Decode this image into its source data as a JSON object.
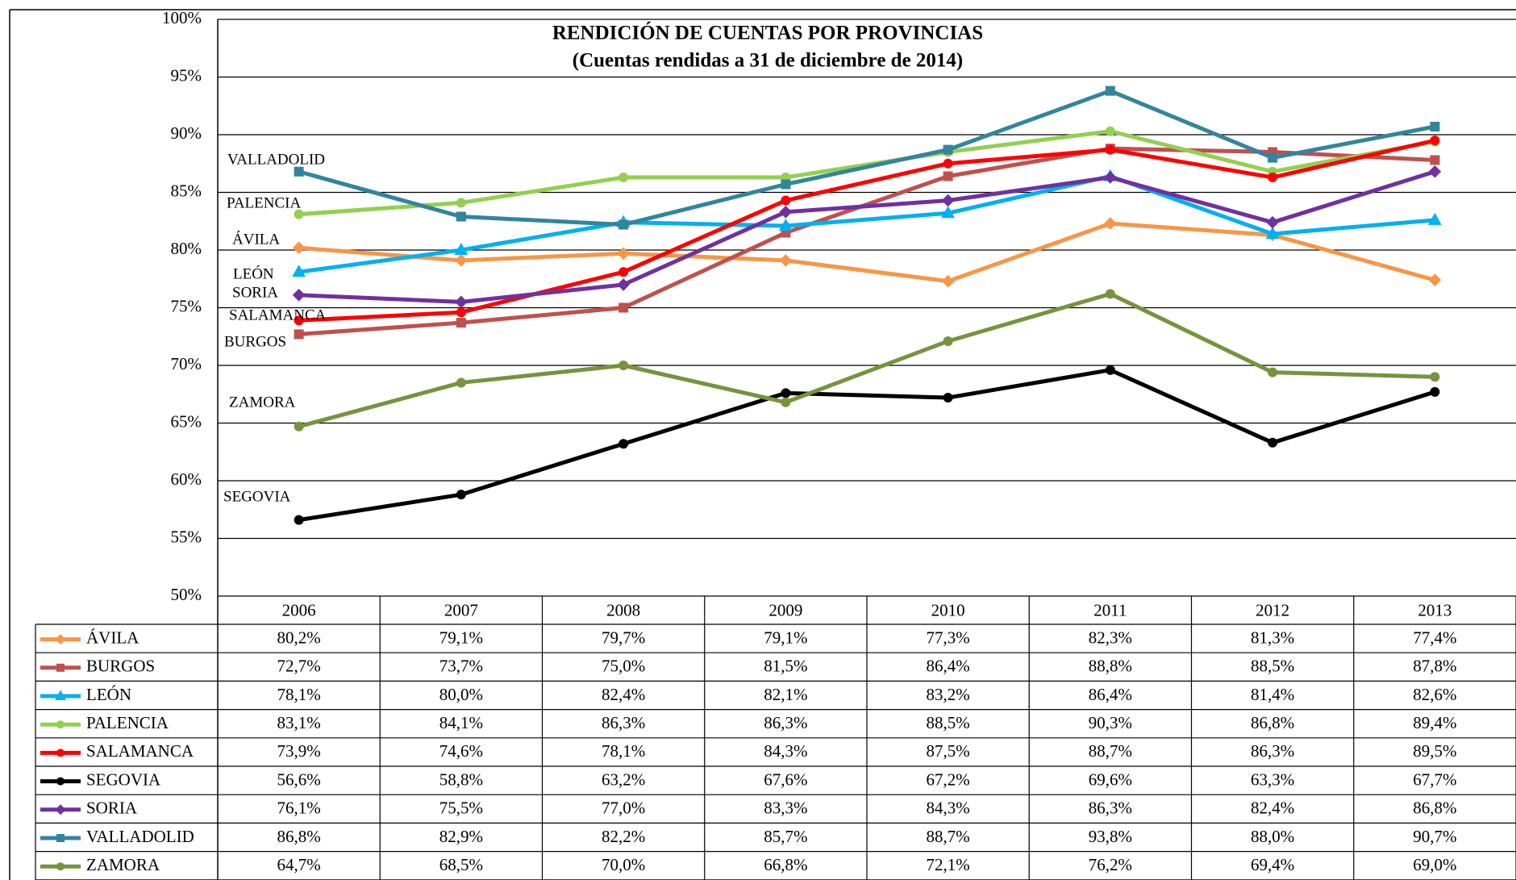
{
  "chart_data": {
    "type": "line",
    "title": "RENDICIÓN DE CUENTAS POR PROVINCIAS",
    "subtitle": "(Cuentas rendidas a 31 de diciembre de 2014)",
    "categories": [
      "2006",
      "2007",
      "2008",
      "2009",
      "2010",
      "2011",
      "2012",
      "2013"
    ],
    "ylim": [
      50,
      100
    ],
    "yticks": [
      {
        "value": 50,
        "label": "50%"
      },
      {
        "value": 55,
        "label": "55%"
      },
      {
        "value": 60,
        "label": "60%"
      },
      {
        "value": 65,
        "label": "65%"
      },
      {
        "value": 70,
        "label": "70%"
      },
      {
        "value": 75,
        "label": "75%"
      },
      {
        "value": 80,
        "label": "80%"
      },
      {
        "value": 85,
        "label": "85%"
      },
      {
        "value": 90,
        "label": "90%"
      },
      {
        "value": 95,
        "label": "95%"
      },
      {
        "value": 100,
        "label": "100%"
      }
    ],
    "grid": true,
    "series": [
      {
        "name": "ÁVILA",
        "color": "#f79646",
        "marker": "diamond",
        "values": [
          80.2,
          79.1,
          79.7,
          79.1,
          77.3,
          82.3,
          81.3,
          77.4
        ],
        "value_labels": [
          "80,2%",
          "79,1%",
          "79,7%",
          "79,1%",
          "77,3%",
          "82,3%",
          "81,3%",
          "77,4%"
        ]
      },
      {
        "name": "BURGOS",
        "color": "#c0504d",
        "marker": "square",
        "values": [
          72.7,
          73.7,
          75.0,
          81.5,
          86.4,
          88.8,
          88.5,
          87.8
        ],
        "value_labels": [
          "72,7%",
          "73,7%",
          "75,0%",
          "81,5%",
          "86,4%",
          "88,8%",
          "88,5%",
          "87,8%"
        ]
      },
      {
        "name": "LEÓN",
        "color": "#00b0f0",
        "marker": "triangle",
        "values": [
          78.1,
          80.0,
          82.4,
          82.1,
          83.2,
          86.4,
          81.4,
          82.6
        ],
        "value_labels": [
          "78,1%",
          "80,0%",
          "82,4%",
          "82,1%",
          "83,2%",
          "86,4%",
          "81,4%",
          "82,6%"
        ]
      },
      {
        "name": "PALENCIA",
        "color": "#92d050",
        "marker": "circle",
        "values": [
          83.1,
          84.1,
          86.3,
          86.3,
          88.5,
          90.3,
          86.8,
          89.4
        ],
        "value_labels": [
          "83,1%",
          "84,1%",
          "86,3%",
          "86,3%",
          "88,5%",
          "90,3%",
          "86,8%",
          "89,4%"
        ]
      },
      {
        "name": "SALAMANCA",
        "color": "#ff0000",
        "marker": "circle",
        "values": [
          73.9,
          74.6,
          78.1,
          84.3,
          87.5,
          88.7,
          86.3,
          89.5
        ],
        "value_labels": [
          "73,9%",
          "74,6%",
          "78,1%",
          "84,3%",
          "87,5%",
          "88,7%",
          "86,3%",
          "89,5%"
        ]
      },
      {
        "name": "SEGOVIA",
        "color": "#000000",
        "marker": "circle",
        "values": [
          56.6,
          58.8,
          63.2,
          67.6,
          67.2,
          69.6,
          63.3,
          67.7
        ],
        "value_labels": [
          "56,6%",
          "58,8%",
          "63,2%",
          "67,6%",
          "67,2%",
          "69,6%",
          "63,3%",
          "67,7%"
        ]
      },
      {
        "name": "SORIA",
        "color": "#7030a0",
        "marker": "diamond",
        "values": [
          76.1,
          75.5,
          77.0,
          83.3,
          84.3,
          86.3,
          82.4,
          86.8
        ],
        "value_labels": [
          "76,1%",
          "75,5%",
          "77,0%",
          "83,3%",
          "84,3%",
          "86,3%",
          "82,4%",
          "86,8%"
        ]
      },
      {
        "name": "VALLADOLID",
        "color": "#31859c",
        "marker": "square",
        "values": [
          86.8,
          82.9,
          82.2,
          85.7,
          88.7,
          93.8,
          88.0,
          90.7
        ],
        "value_labels": [
          "86,8%",
          "82,9%",
          "82,2%",
          "85,7%",
          "88,7%",
          "93,8%",
          "88,0%",
          "90,7%"
        ]
      },
      {
        "name": "ZAMORA",
        "color": "#77933c",
        "marker": "circle",
        "values": [
          64.7,
          68.5,
          70.0,
          66.8,
          72.1,
          76.2,
          69.4,
          69.0
        ],
        "value_labels": [
          "64,7%",
          "68,5%",
          "70,0%",
          "66,8%",
          "72,1%",
          "76,2%",
          "69,4%",
          "69,0%"
        ]
      }
    ]
  }
}
